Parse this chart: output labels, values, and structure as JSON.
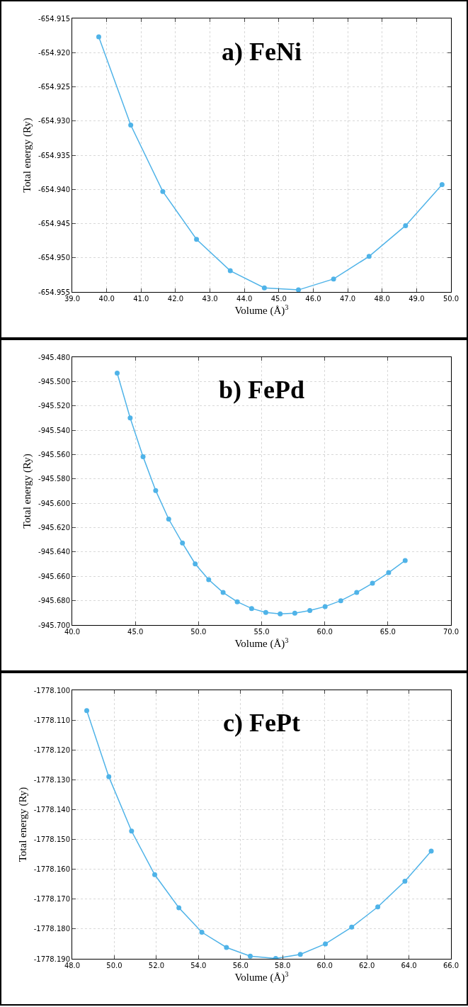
{
  "chart_data": [
    {
      "type": "line",
      "title": "a) FeNi",
      "xlabel": "Volume (Å)$^{3}$",
      "ylabel": "Total energy (Ry)",
      "marker": "circle",
      "line_style": "solid",
      "grid": true,
      "x": [
        39.77,
        40.7,
        41.63,
        42.61,
        43.59,
        44.58,
        45.57,
        46.59,
        47.62,
        48.68,
        49.74
      ],
      "series": [
        {
          "color": "#4fb3e8",
          "values": [
            -654.9177,
            -654.9306,
            -654.9403,
            -654.9473,
            -654.9519,
            -654.9544,
            -654.9547,
            -654.9531,
            -654.9498,
            -654.9453,
            -654.9393
          ]
        }
      ],
      "xlim": [
        39,
        50
      ],
      "xticks": [
        {
          "value": 39,
          "label": "39.0"
        },
        {
          "value": 40,
          "label": "40.0"
        },
        {
          "value": 41,
          "label": "41.0"
        },
        {
          "value": 42,
          "label": "42.0"
        },
        {
          "value": 43,
          "label": "43.0"
        },
        {
          "value": 44,
          "label": "44.0"
        },
        {
          "value": 45,
          "label": "45.0"
        },
        {
          "value": 46,
          "label": "46.0"
        },
        {
          "value": 47,
          "label": "47.0"
        },
        {
          "value": 48,
          "label": "48.0"
        },
        {
          "value": 49,
          "label": "49.0"
        },
        {
          "value": 50,
          "label": "50.0"
        }
      ],
      "ylim": [
        -654.955,
        -654.915
      ],
      "yticks": [
        {
          "value": -654.955,
          "label": "-654.955"
        },
        {
          "value": -654.95,
          "label": "-654.950"
        },
        {
          "value": -654.945,
          "label": "-654.945"
        },
        {
          "value": -654.94,
          "label": "-654.940"
        },
        {
          "value": -654.935,
          "label": "-654.935"
        },
        {
          "value": -654.93,
          "label": "-654.930"
        },
        {
          "value": -654.925,
          "label": "-654.925"
        },
        {
          "value": -654.92,
          "label": "-654.920"
        },
        {
          "value": -654.915,
          "label": "-654.915"
        }
      ]
    },
    {
      "type": "line",
      "title": "b) FePd",
      "xlabel": "Volume (Å)$^{3}$",
      "ylabel": "Total energy (Ry)",
      "marker": "circle",
      "line_style": "solid",
      "grid": true,
      "x": [
        43.56,
        44.59,
        45.61,
        46.61,
        47.64,
        48.73,
        49.74,
        50.81,
        51.95,
        53.07,
        54.21,
        55.33,
        56.47,
        57.63,
        58.82,
        60.03,
        61.27,
        62.53,
        63.78,
        65.06,
        66.37
      ],
      "series": [
        {
          "color": "#4fb3e8",
          "values": [
            -945.4931,
            -945.5299,
            -945.5617,
            -945.5895,
            -945.613,
            -945.6327,
            -945.6498,
            -945.6628,
            -945.6733,
            -945.6809,
            -945.6864,
            -945.6897,
            -945.6909,
            -945.6902,
            -945.6881,
            -945.6848,
            -945.68,
            -945.6733,
            -945.6657,
            -945.657,
            -945.647
          ]
        }
      ],
      "xlim": [
        40,
        70
      ],
      "xticks": [
        {
          "value": 40,
          "label": "40.0"
        },
        {
          "value": 45,
          "label": "45.0"
        },
        {
          "value": 50,
          "label": "50.0"
        },
        {
          "value": 55,
          "label": "55.0"
        },
        {
          "value": 60,
          "label": "60.0"
        },
        {
          "value": 65,
          "label": "65.0"
        },
        {
          "value": 70,
          "label": "70.0"
        }
      ],
      "ylim": [
        -945.7,
        -945.48
      ],
      "yticks": [
        {
          "value": -945.7,
          "label": "-945.700"
        },
        {
          "value": -945.68,
          "label": "-945.680"
        },
        {
          "value": -945.66,
          "label": "-945.660"
        },
        {
          "value": -945.64,
          "label": "-945.640"
        },
        {
          "value": -945.62,
          "label": "-945.620"
        },
        {
          "value": -945.6,
          "label": "-945.600"
        },
        {
          "value": -945.58,
          "label": "-945.580"
        },
        {
          "value": -945.56,
          "label": "-945.560"
        },
        {
          "value": -945.54,
          "label": "-945.540"
        },
        {
          "value": -945.52,
          "label": "-945.520"
        },
        {
          "value": -945.5,
          "label": "-945.500"
        },
        {
          "value": -945.48,
          "label": "-945.480"
        }
      ]
    },
    {
      "type": "line",
      "title": "c) FePt",
      "xlabel": "Volume (Å)$^{3}$",
      "ylabel": "Total energy (Ry)",
      "marker": "circle",
      "line_style": "solid",
      "grid": true,
      "x": [
        48.69,
        49.74,
        50.82,
        51.92,
        53.07,
        54.16,
        55.33,
        56.46,
        57.67,
        58.84,
        60.03,
        61.28,
        62.52,
        63.81,
        65.06
      ],
      "series": [
        {
          "color": "#4fb3e8",
          "values": [
            -1778.1068,
            -1778.129,
            -1778.1472,
            -1778.1618,
            -1778.1729,
            -1778.1811,
            -1778.1862,
            -1778.1891,
            -1778.1899,
            -1778.1885,
            -1778.185,
            -1778.1794,
            -1778.1726,
            -1778.164,
            -1778.1539
          ]
        }
      ],
      "xlim": [
        48,
        66
      ],
      "xticks": [
        {
          "value": 48,
          "label": "48.0"
        },
        {
          "value": 50,
          "label": "50.0"
        },
        {
          "value": 52,
          "label": "52.0"
        },
        {
          "value": 54,
          "label": "54.0"
        },
        {
          "value": 56,
          "label": "56.0"
        },
        {
          "value": 58,
          "label": "58.0"
        },
        {
          "value": 60,
          "label": "60.0"
        },
        {
          "value": 62,
          "label": "62.0"
        },
        {
          "value": 64,
          "label": "64.0"
        },
        {
          "value": 66,
          "label": "66.0"
        }
      ],
      "ylim": [
        -1778.19,
        -1778.1
      ],
      "yticks": [
        {
          "value": -1778.19,
          "label": "-1778.190"
        },
        {
          "value": -1778.18,
          "label": "-1778.180"
        },
        {
          "value": -1778.17,
          "label": "-1778.170"
        },
        {
          "value": -1778.16,
          "label": "-1778.160"
        },
        {
          "value": -1778.15,
          "label": "-1778.150"
        },
        {
          "value": -1778.14,
          "label": "-1778.140"
        },
        {
          "value": -1778.13,
          "label": "-1778.130"
        },
        {
          "value": -1778.12,
          "label": "-1778.120"
        },
        {
          "value": -1778.11,
          "label": "-1778.110"
        },
        {
          "value": -1778.1,
          "label": "-1778.100"
        }
      ]
    }
  ]
}
